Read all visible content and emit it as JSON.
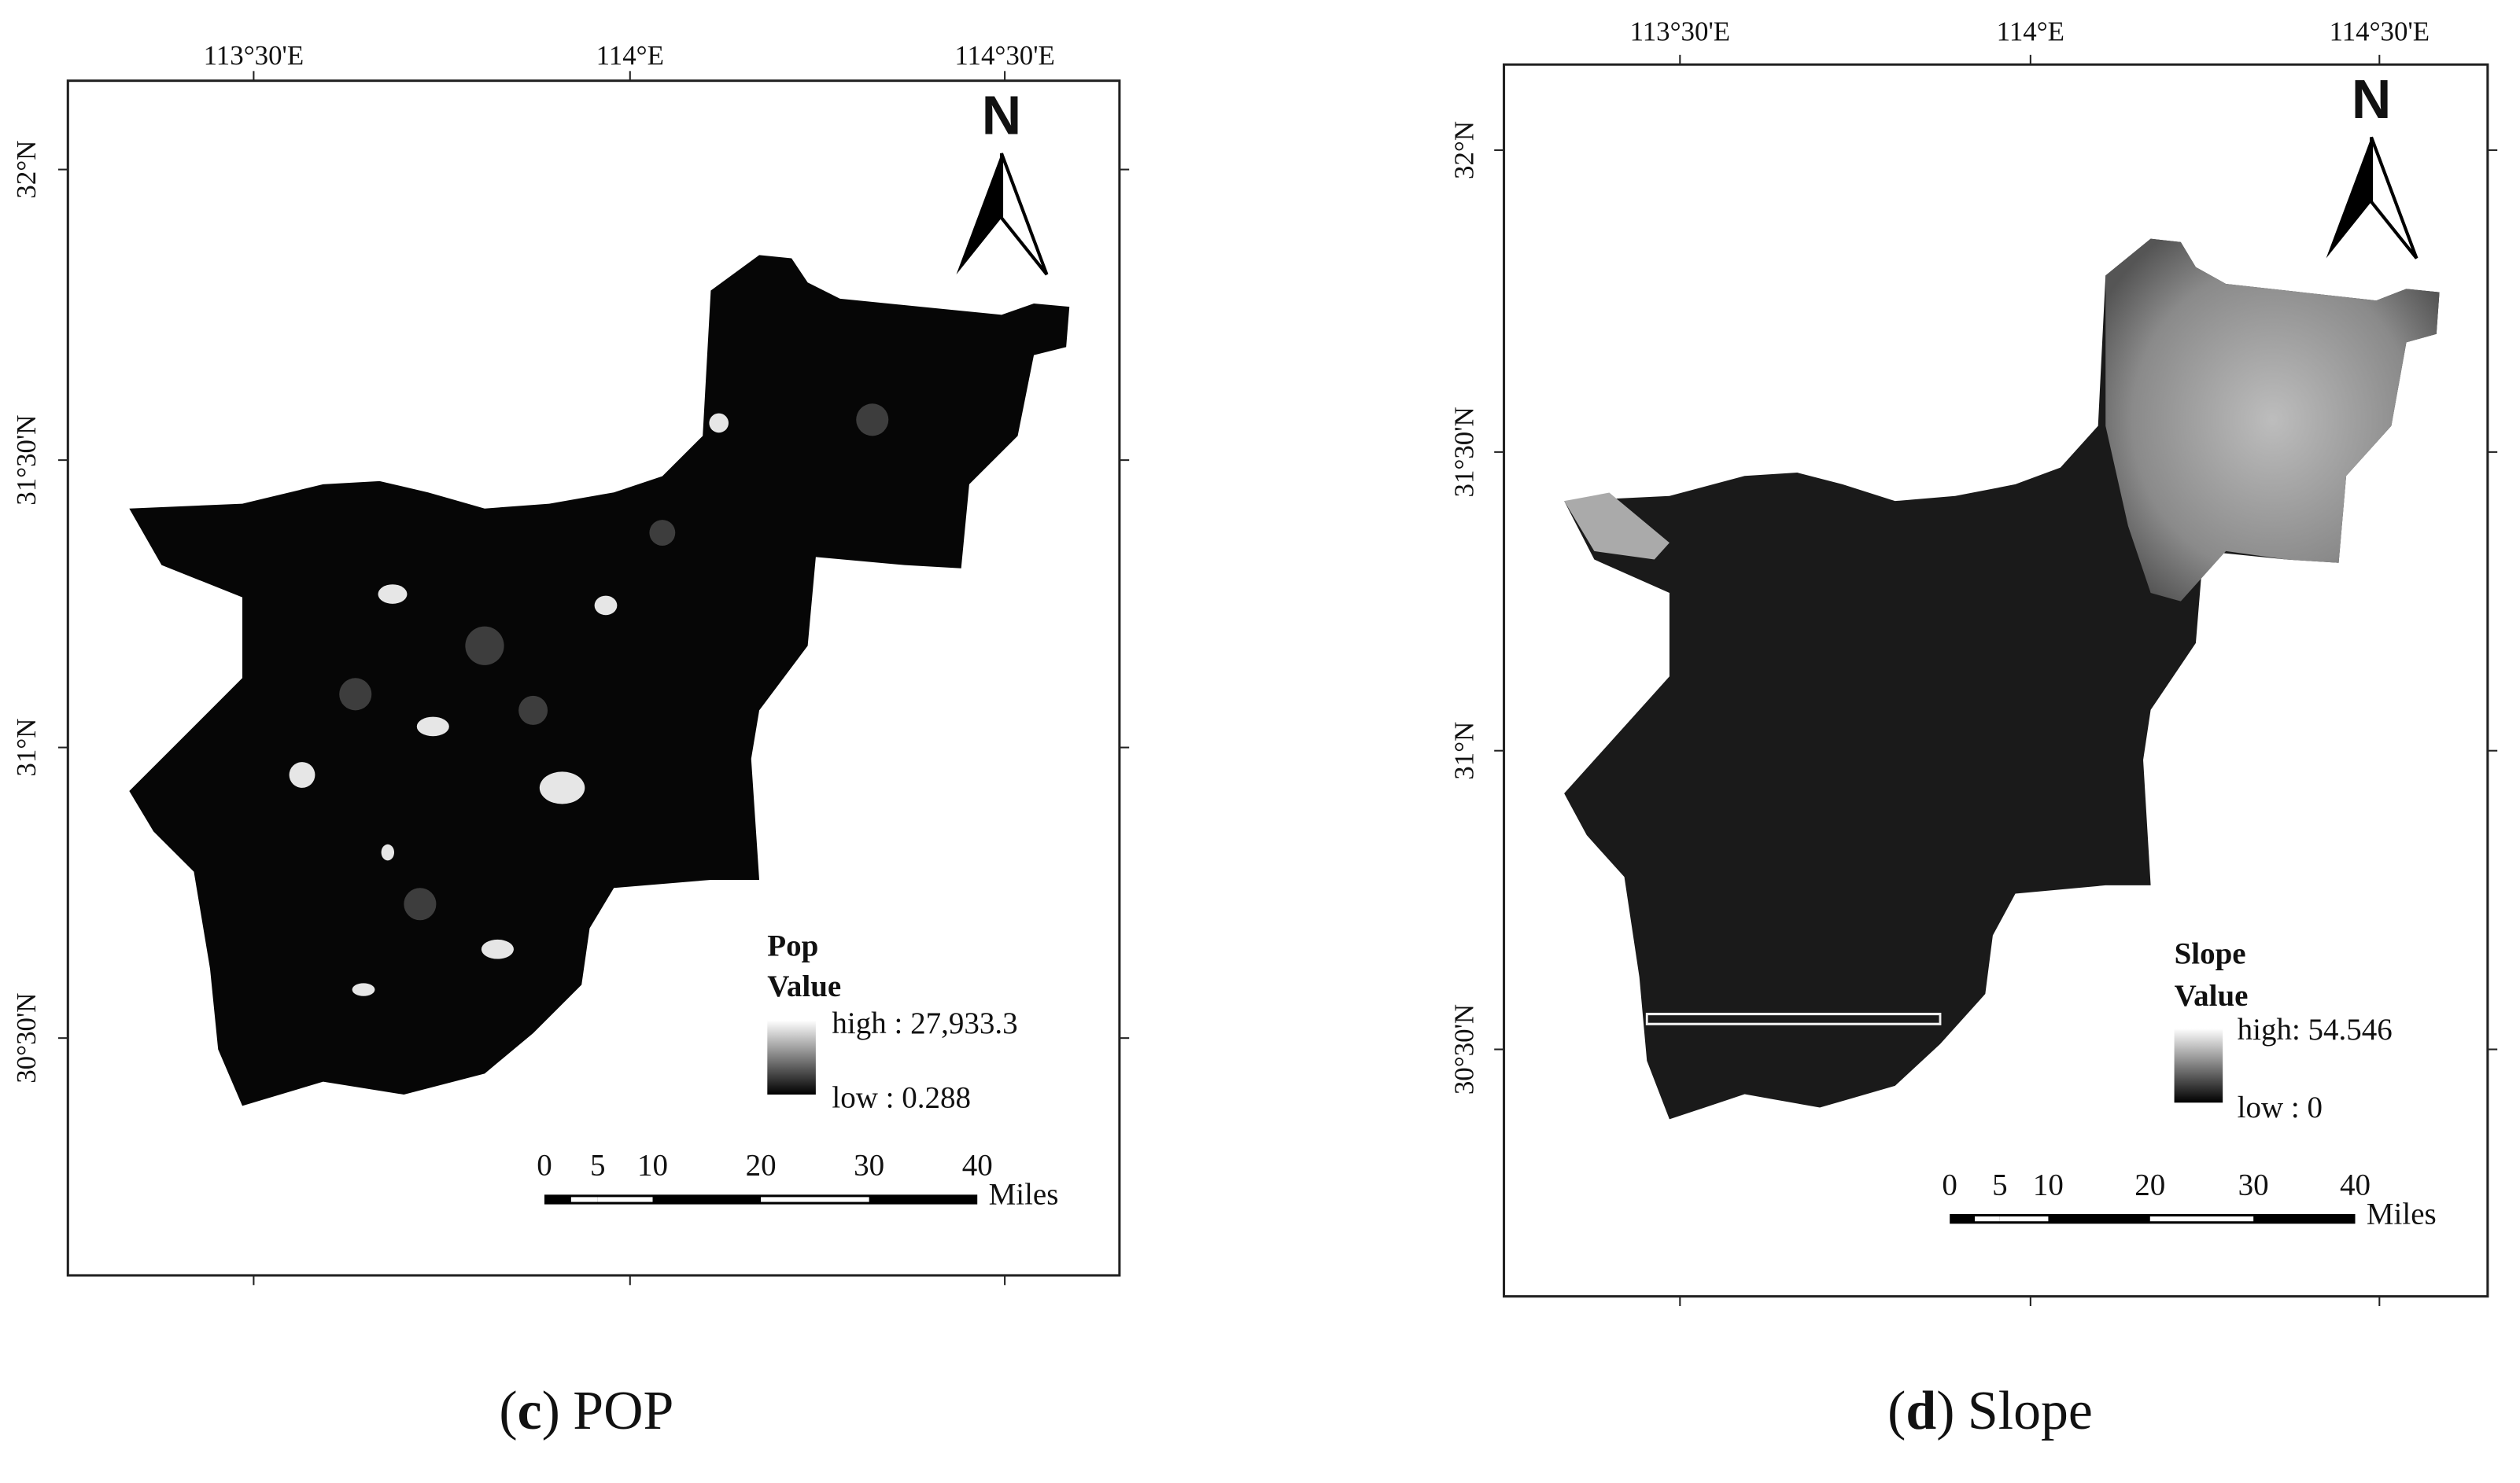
{
  "panels": [
    {
      "lon_labels": [
        "113°30'E",
        "114°E",
        "114°30'E"
      ],
      "lat_labels": [
        "32°N",
        "31°30'N",
        "31°N",
        "30°30'N"
      ],
      "north": "N",
      "legend": {
        "title": "Pop",
        "field": "Value",
        "high": "high : 27,933.3",
        "low": "low : 0.288"
      },
      "scale_bar": {
        "ticks": [
          "0",
          "5",
          "10",
          "20",
          "30",
          "40"
        ],
        "unit": "Miles"
      },
      "caption": [
        "(",
        "c",
        ")",
        "POP"
      ]
    },
    {
      "lon_labels": [
        "113°30'E",
        "114°E",
        "114°30'E"
      ],
      "lat_labels": [
        "32°N",
        "31°30'N",
        "31°N",
        "30°30'N"
      ],
      "north": "N",
      "legend": {
        "title": "Slope",
        "field": "Value",
        "high": "high: 54.546",
        "low": "low : 0"
      },
      "scale_bar": {
        "ticks": [
          "0",
          "5",
          "10",
          "20",
          "30",
          "40"
        ],
        "unit": "Miles"
      },
      "caption": [
        "(",
        "d",
        ")",
        "Slope"
      ]
    }
  ]
}
